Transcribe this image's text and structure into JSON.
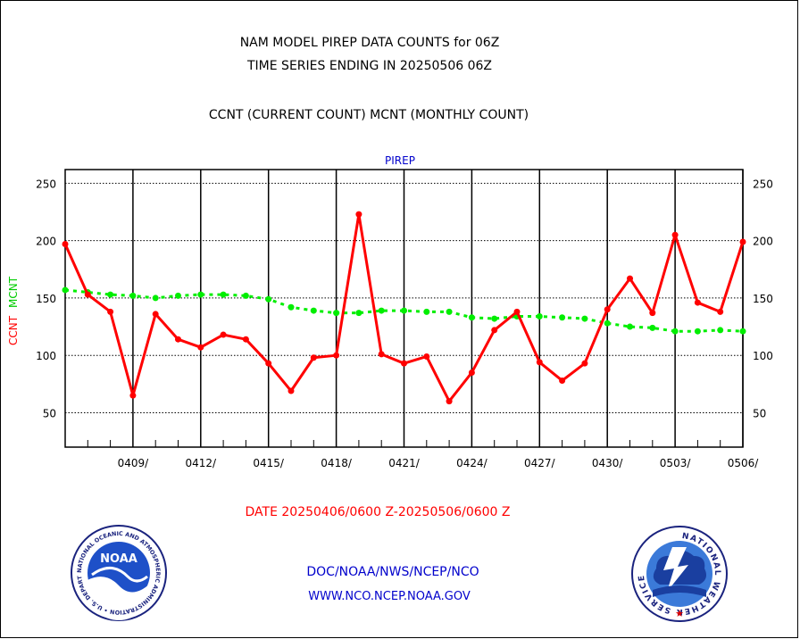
{
  "header": {
    "title_line1": "NAM MODEL PIREP DATA COUNTS for 06Z",
    "title_line2": "TIME SERIES ENDING IN 20250506 06Z",
    "subtitle": "CCNT (CURRENT COUNT) MCNT (MONTHLY COUNT)"
  },
  "footer": {
    "date_range": "DATE 20250406/0600 Z-20250506/0600 Z",
    "link1": "DOC/NOAA/NWS/NCEP/NCO",
    "link2": "WWW.NCO.NCEP.NOAA.GOV"
  },
  "logos": {
    "noaa_text": "NOAA",
    "noaa_ring": "NATIONAL OCEANIC AND ATMOSPHERIC ADMINISTRATION • U.S. DEPARTMENT OF COMMERCE •",
    "nws_ring": "NATIONAL WEATHER SERVICE"
  },
  "colors": {
    "ccnt": "#ff0000",
    "mcnt": "#00ee00",
    "panel_title": "#0000cc",
    "date_text": "#ff0000",
    "link_text": "#0000cc"
  },
  "chart_data": {
    "type": "line",
    "panel_title": "PIREP",
    "ylabel_ccnt": "CCNT",
    "ylabel_mcnt": "MCNT",
    "ylim": [
      20,
      262
    ],
    "yticks": [
      50,
      100,
      150,
      200,
      250
    ],
    "xlim": [
      0,
      30
    ],
    "x_ticks": [
      3,
      6,
      9,
      12,
      15,
      18,
      21,
      24,
      27,
      30
    ],
    "x_tick_labels": [
      "0409/",
      "0412/",
      "0415/",
      "0418/",
      "0421/",
      "0424/",
      "0427/",
      "0430/",
      "0503/",
      "0506/"
    ],
    "x": [
      0,
      1,
      2,
      3,
      4,
      5,
      6,
      7,
      8,
      9,
      10,
      11,
      12,
      13,
      14,
      15,
      16,
      17,
      18,
      19,
      20,
      21,
      22,
      23,
      24,
      25,
      26,
      27,
      28,
      29,
      30
    ],
    "series": [
      {
        "name": "CCNT",
        "values": [
          197,
          153,
          138,
          65,
          136,
          114,
          107,
          118,
          114,
          93,
          69,
          98,
          100,
          223,
          101,
          93,
          99,
          60,
          85,
          122,
          138,
          94,
          78,
          93,
          140,
          167,
          137,
          205,
          146,
          138,
          199
        ]
      },
      {
        "name": "MCNT",
        "values": [
          157,
          155,
          153,
          152,
          150,
          152,
          153,
          153,
          152,
          149,
          142,
          139,
          137,
          137,
          139,
          139,
          138,
          138,
          133,
          132,
          134,
          134,
          133,
          132,
          128,
          125,
          124,
          121,
          121,
          122,
          121
        ]
      }
    ],
    "grid": true
  }
}
